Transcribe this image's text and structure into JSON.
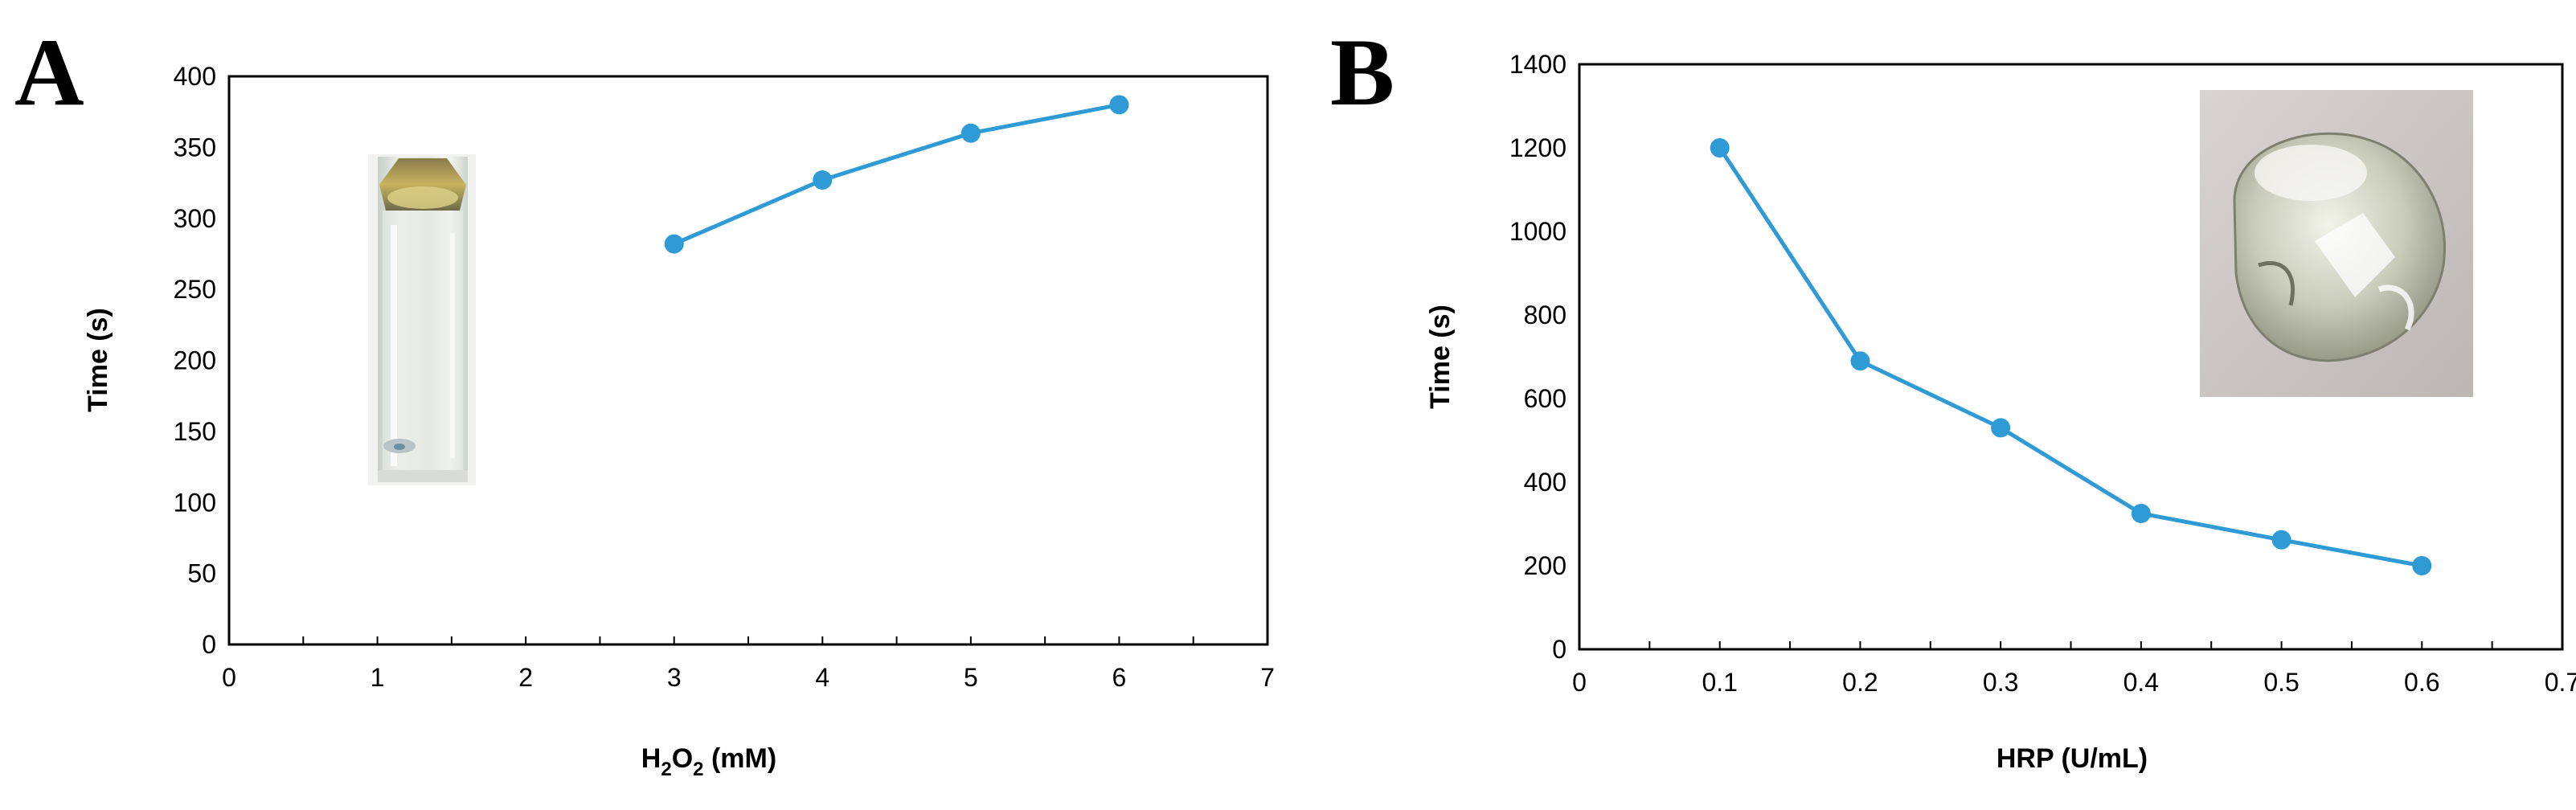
{
  "chart_data": [
    {
      "panel": "A",
      "type": "line",
      "xlabel": "H2O2 (mM)",
      "xlabel_parts": {
        "base": "H",
        "sub1": "2",
        "mid": "O",
        "sub2": "2",
        "unit": " (mM)"
      },
      "ylabel": "Time (s)",
      "xlim": [
        0,
        7
      ],
      "ylim": [
        0,
        400
      ],
      "xticks": [
        "0",
        "1",
        "2",
        "3",
        "4",
        "5",
        "6",
        "7"
      ],
      "yticks": [
        "0",
        "50",
        "100",
        "150",
        "200",
        "250",
        "300",
        "350",
        "400"
      ],
      "grid": false,
      "series": [
        {
          "x": [
            3,
            4,
            5,
            6
          ],
          "y": [
            282,
            327,
            360,
            380
          ],
          "color": "#2e9bd6"
        }
      ],
      "inset": "cuvette-photo"
    },
    {
      "panel": "B",
      "type": "line",
      "xlabel": "HRP (U/mL)",
      "ylabel": "Time (s)",
      "xlim": [
        0,
        0.7
      ],
      "ylim": [
        0,
        1400
      ],
      "xticks": [
        "0",
        "0.1",
        "0.2",
        "0.3",
        "0.4",
        "0.5",
        "0.6",
        "0.7"
      ],
      "yticks": [
        "0",
        "200",
        "400",
        "600",
        "800",
        "1000",
        "1200",
        "1400"
      ],
      "grid": false,
      "series": [
        {
          "x": [
            0.1,
            0.2,
            0.3,
            0.4,
            0.5,
            0.6
          ],
          "y": [
            1200,
            690,
            530,
            325,
            262,
            200
          ],
          "color": "#2e9bd6"
        }
      ],
      "inset": "hydrogel-photo"
    }
  ]
}
